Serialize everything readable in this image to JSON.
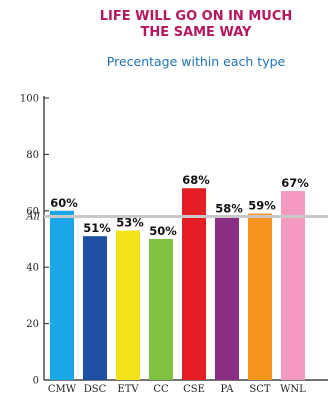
{
  "chart_data": {
    "type": "bar",
    "title_lines": [
      "LIFE WILL GO ON IN MUCH",
      "THE SAME WAY"
    ],
    "subtitle": "Precentage within each type",
    "categories": [
      "CMW",
      "DSC",
      "ETV",
      "CC",
      "CSE",
      "PA",
      "SCT",
      "WNL"
    ],
    "values": [
      60,
      51,
      53,
      50,
      68,
      58,
      59,
      67
    ],
    "value_labels": [
      "60%",
      "51%",
      "53%",
      "50%",
      "68%",
      "58%",
      "59%",
      "67%"
    ],
    "colors": [
      "#1aa7e8",
      "#1f4fa3",
      "#f2e21a",
      "#7fc242",
      "#e31e25",
      "#8b2f86",
      "#f7941d",
      "#f49ac1"
    ],
    "ylim": [
      0,
      100
    ],
    "yticks": [
      0,
      20,
      40,
      60,
      80,
      100
    ],
    "reference_line": {
      "label": "All",
      "value": 58,
      "color": "#c8c8c8"
    },
    "grid": false
  }
}
